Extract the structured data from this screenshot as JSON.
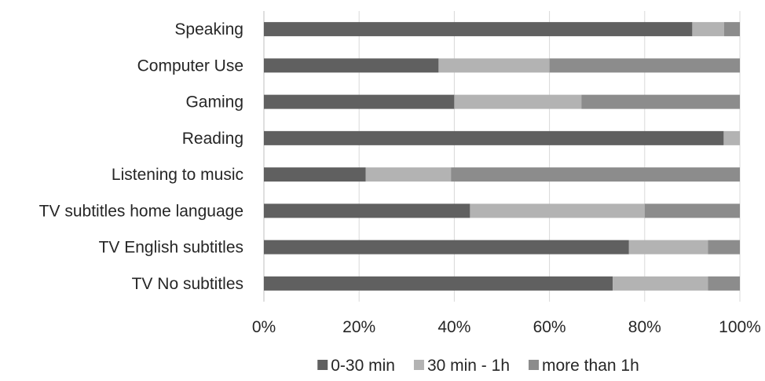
{
  "chart_data": {
    "type": "bar",
    "orientation": "horizontal",
    "stacked": "percent",
    "categories": [
      "Speaking",
      "Computer Use",
      "Gaming",
      "Reading",
      "Listening to music",
      "TV subtitles home language",
      "TV English subtitles",
      "TV No subtitles"
    ],
    "series": [
      {
        "name": "0-30 min",
        "color": "#606060",
        "values": [
          90,
          36.7,
          40,
          96.6,
          21.4,
          43.3,
          76.7,
          73.3
        ]
      },
      {
        "name": "30 min - 1h",
        "color": "#b3b3b3",
        "values": [
          6.7,
          23.3,
          26.7,
          3.4,
          17.9,
          36.7,
          16.6,
          20
        ]
      },
      {
        "name": "more than 1h",
        "color": "#8c8c8c",
        "values": [
          3.3,
          40,
          33.3,
          0,
          60.7,
          20,
          6.7,
          6.7
        ]
      }
    ],
    "x_ticks": [
      "0%",
      "20%",
      "40%",
      "60%",
      "80%",
      "100%"
    ],
    "xlim": [
      0,
      100
    ],
    "grid": "vertical",
    "legend_position": "bottom",
    "title": "",
    "xlabel": "",
    "ylabel": ""
  },
  "colors": {
    "gridline": "#d9d9d9",
    "axis": "#bfbfbf"
  }
}
